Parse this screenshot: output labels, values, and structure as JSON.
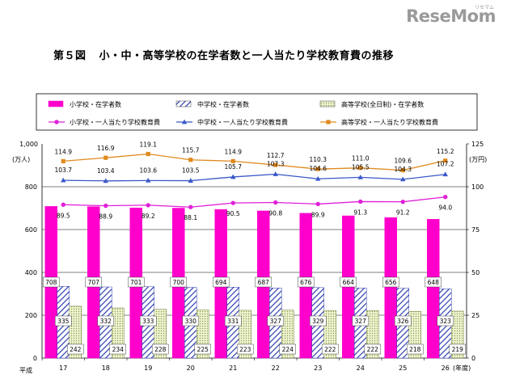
{
  "logo": {
    "text": "ReseMom",
    "sub": "リセマム"
  },
  "title": {
    "figure": "第５図",
    "text": "小・中・高等学校の在学者数と一人当たり学校教育費の推移"
  },
  "colors": {
    "elementary": "#ff00cc",
    "junior": "#2e3fb0",
    "high": "#d8e6a6",
    "high_line": "#e08a1e",
    "junior_line": "#3a58c8",
    "elementary_line": "#e020d8"
  },
  "chart_data": {
    "type": "bar+line",
    "era_label": "平成",
    "xunit": "(年度)",
    "categories": [
      "17",
      "18",
      "19",
      "20",
      "21",
      "22",
      "23",
      "24",
      "25",
      "26"
    ],
    "left_axis": {
      "unit_top": "1,000",
      "unit": "(万人)",
      "ylim": [
        0,
        1000
      ],
      "ticks": [
        "0",
        "200",
        "400",
        "600",
        "800",
        "1,000"
      ],
      "tick_values": [
        0,
        200,
        400,
        600,
        800,
        1000
      ]
    },
    "right_axis": {
      "unit": "(万円)",
      "ylim": [
        0,
        125
      ],
      "ticks": [
        "0",
        "25",
        "50",
        "75",
        "100",
        "125"
      ],
      "tick_values": [
        0,
        25,
        50,
        75,
        100,
        125
      ]
    },
    "legend": [
      {
        "key": "elementary_students",
        "label": "小学校・在学者数",
        "kind": "bar"
      },
      {
        "key": "junior_students",
        "label": "中学校・在学者数",
        "kind": "bar"
      },
      {
        "key": "high_students",
        "label": "高等学校(全日制)・在学者数",
        "kind": "bar"
      },
      {
        "key": "elementary_cost",
        "label": "小学校・一人当たり学校教育費",
        "kind": "line"
      },
      {
        "key": "junior_cost",
        "label": "中学校・一人当たり学校教育費",
        "kind": "line"
      },
      {
        "key": "high_cost",
        "label": "高等学校・一人当たり学校教育費",
        "kind": "line"
      }
    ],
    "bars": {
      "elementary_students": [
        "708",
        "707",
        "701",
        "700",
        "694",
        "687",
        "676",
        "664",
        "656",
        "648"
      ],
      "junior_students": [
        "335",
        "332",
        "333",
        "330",
        "331",
        "327",
        "329",
        "327",
        "326",
        "323"
      ],
      "high_students": [
        "242",
        "234",
        "228",
        "225",
        "223",
        "224",
        "222",
        "222",
        "218",
        "219"
      ]
    },
    "lines": {
      "high_cost": [
        "114.9",
        "116.9",
        "119.1",
        "115.7",
        "114.9",
        "112.7",
        "110.3",
        "111.0",
        "109.6",
        "115.2"
      ],
      "junior_cost": [
        "103.7",
        "103.4",
        "103.6",
        "103.5",
        "105.7",
        "107.3",
        "104.6",
        "105.5",
        "104.3",
        "107.2"
      ],
      "elementary_cost": [
        "89.5",
        "88.9",
        "89.2",
        "88.1",
        "90.5",
        "90.8",
        "89.9",
        "91.3",
        "91.2",
        "94.0"
      ]
    }
  }
}
